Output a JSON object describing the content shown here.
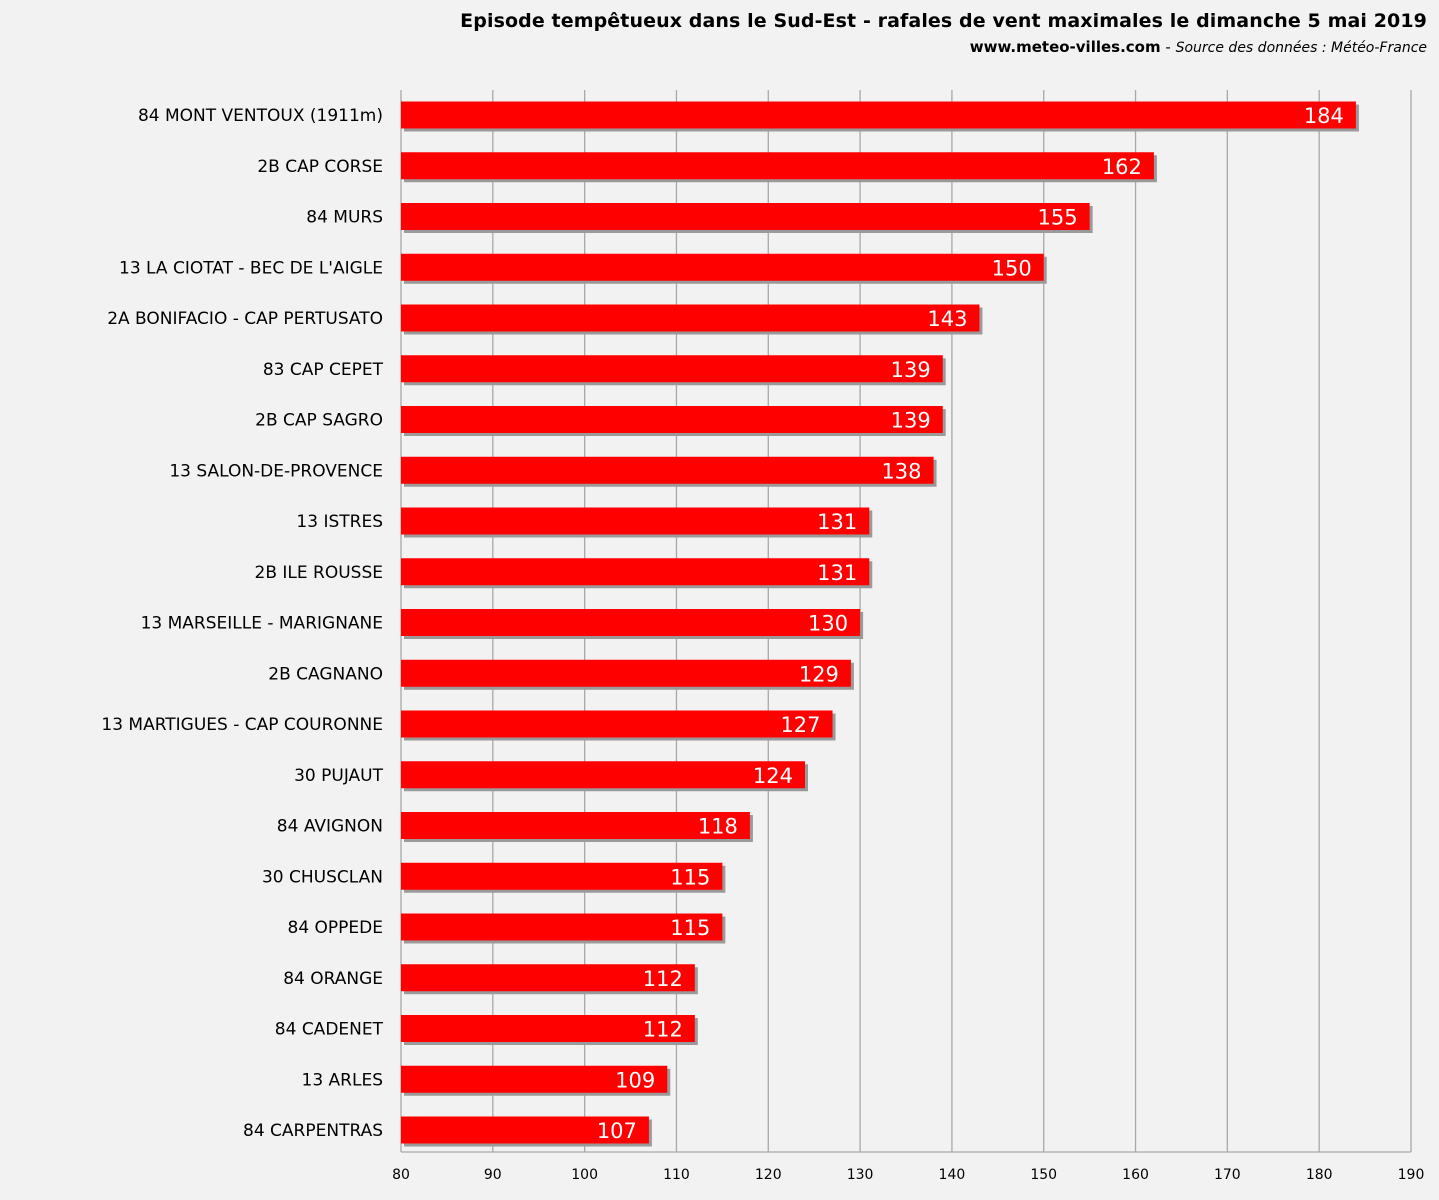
{
  "header": {
    "title": "Episode tempêtueux dans le Sud-Est - rafales de vent maximales le dimanche 5 mai 2019",
    "site": "www.meteo-villes.com",
    "separator": "-",
    "source": "Source des données : Météo-France"
  },
  "colors": {
    "bar": "#ff0000",
    "bar_shadow": "#9a9a9a",
    "grid": "#a8a8a8",
    "background": "#f2f2f2"
  },
  "chart_data": {
    "type": "bar",
    "orientation": "horizontal",
    "categories": [
      "84 MONT VENTOUX (1911m)",
      "2B CAP CORSE",
      "84 MURS",
      "13 LA CIOTAT - BEC DE L'AIGLE",
      "2A BONIFACIO - CAP PERTUSATO",
      "83 CAP CEPET",
      "2B CAP SAGRO",
      "13 SALON-DE-PROVENCE",
      "13 ISTRES",
      "2B ILE ROUSSE",
      "13 MARSEILLE - MARIGNANE",
      "2B CAGNANO",
      "13 MARTIGUES - CAP COURONNE",
      "30 PUJAUT",
      "84 AVIGNON",
      "30 CHUSCLAN",
      "84 OPPEDE",
      "84 ORANGE",
      "84 CADENET",
      "13 ARLES",
      "84 CARPENTRAS"
    ],
    "values": [
      184,
      162,
      155,
      150,
      143,
      139,
      139,
      138,
      131,
      131,
      130,
      129,
      127,
      124,
      118,
      115,
      115,
      112,
      112,
      109,
      107
    ],
    "xlim": [
      80,
      190
    ],
    "xticks": [
      "80",
      "90",
      "100",
      "110",
      "120",
      "130",
      "140",
      "150",
      "160",
      "170",
      "180",
      "190"
    ],
    "grid": "vertical",
    "data_labels": true
  }
}
